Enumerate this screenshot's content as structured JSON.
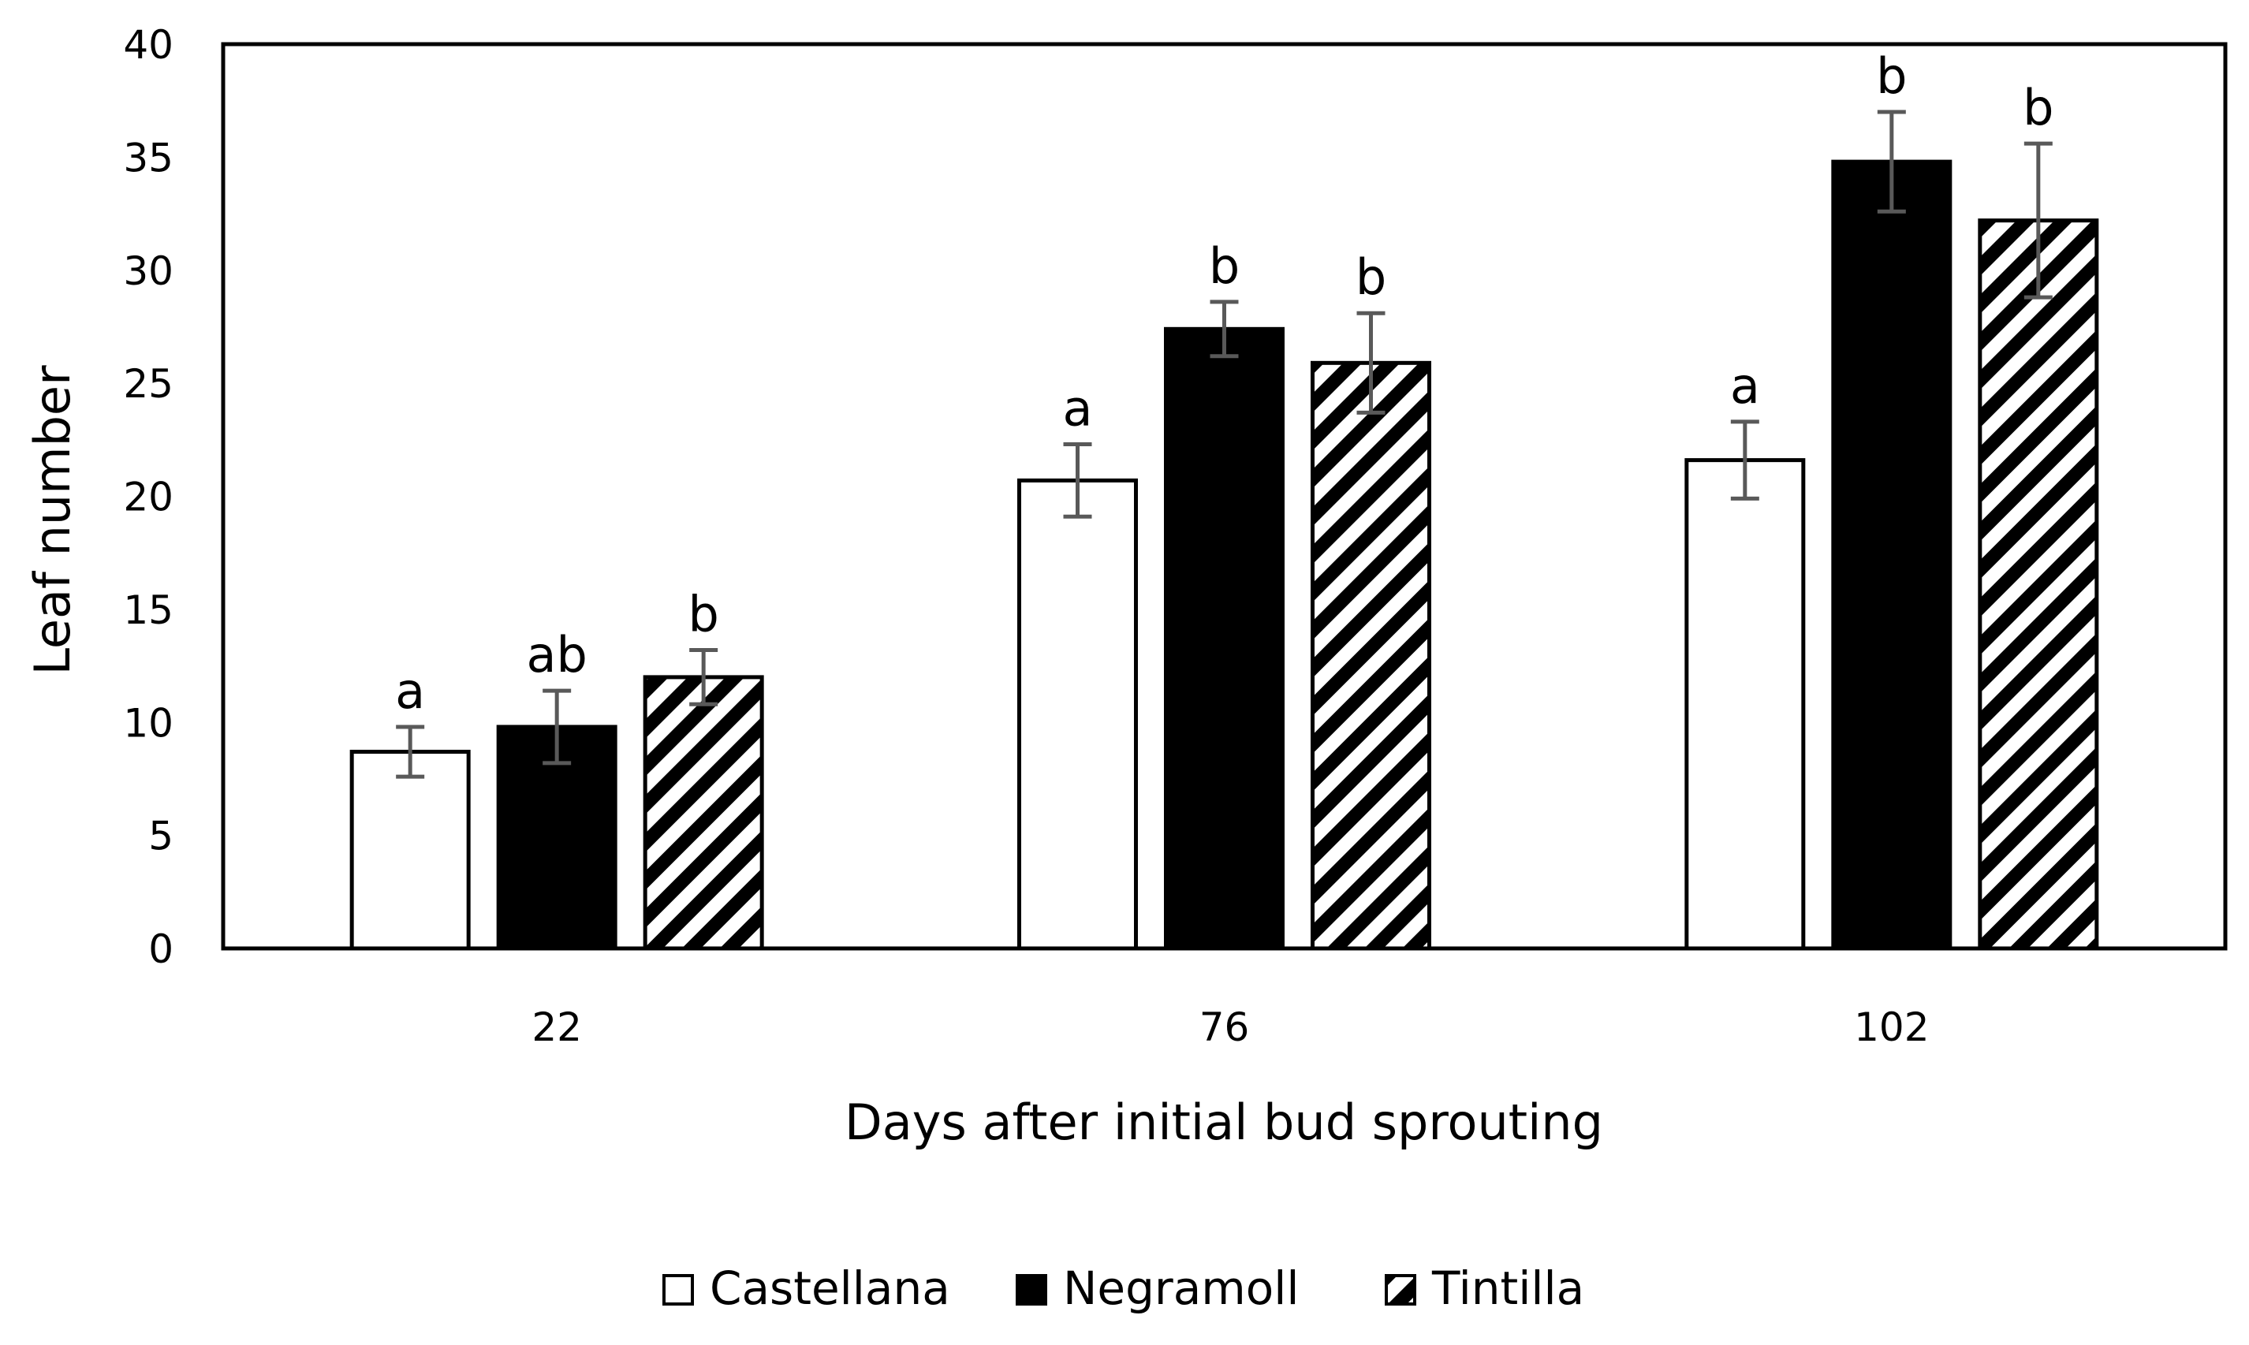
{
  "chart_data": {
    "type": "bar",
    "title": "",
    "xlabel": "Days after initial bud sprouting",
    "ylabel": "Leaf number",
    "ylim": [
      0,
      40
    ],
    "yticks": [
      0,
      5,
      10,
      15,
      20,
      25,
      30,
      35,
      40
    ],
    "categories": [
      "22",
      "76",
      "102"
    ],
    "grid": false,
    "legend_position": "bottom",
    "series": [
      {
        "name": "Castellana",
        "fill": "white",
        "values": [
          8.7,
          20.7,
          21.6
        ],
        "errors": [
          1.1,
          1.6,
          1.7
        ],
        "labels": [
          "a",
          "a",
          "a"
        ]
      },
      {
        "name": "Negramoll",
        "fill": "black",
        "values": [
          9.8,
          27.4,
          34.8
        ],
        "errors": [
          1.6,
          1.2,
          2.2
        ],
        "labels": [
          "ab",
          "b",
          "b"
        ]
      },
      {
        "name": "Tintilla",
        "fill": "hatched",
        "values": [
          12.0,
          25.9,
          32.2
        ],
        "errors": [
          1.2,
          2.2,
          3.4
        ],
        "labels": [
          "b",
          "b",
          "b"
        ]
      }
    ]
  },
  "colors": {
    "bar_outline": "#000000",
    "error_bar": "#595959",
    "black_fill": "#000000",
    "white_fill": "#ffffff"
  }
}
